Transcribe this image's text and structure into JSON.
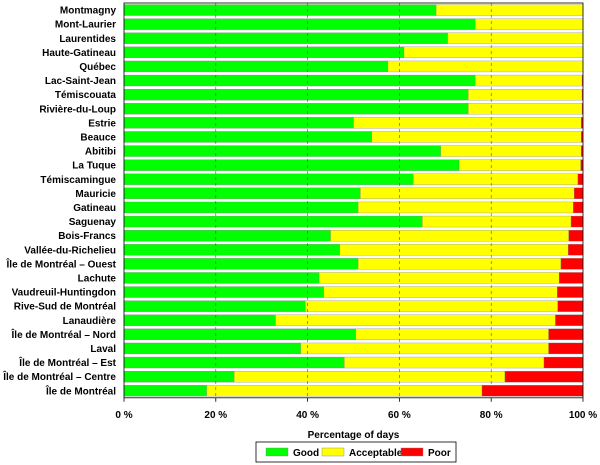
{
  "chart_data": {
    "type": "bar",
    "orientation": "horizontal",
    "stacked": true,
    "categories": [
      "Montmagny",
      "Mont-Laurier",
      "Laurentides",
      "Haute-Gatineau",
      "Québec",
      "Lac-Saint-Jean",
      "Témiscouata",
      "Rivière-du-Loup",
      "Estrie",
      "Beauce",
      "Abitibi",
      "La Tuque",
      "Témiscamingue",
      "Mauricie",
      "Gatineau",
      "Saguenay",
      "Bois-Francs",
      "Vallée-du-Richelieu",
      "Île de Montréal – Ouest",
      "Lachute",
      "Vaudreuil-Huntingdon",
      "Rive-Sud de Montréal",
      "Lanaudière",
      "Île de Montréal – Nord",
      "Laval",
      "Île de Montréal – Est",
      "Île de Montréal – Centre",
      "Île de Montréal"
    ],
    "series": [
      {
        "name": "Good",
        "color": "#00ff00",
        "values": [
          68,
          76.5,
          70.5,
          61,
          57.5,
          76.5,
          75,
          75,
          50,
          54,
          69,
          73,
          63,
          51.5,
          51,
          65,
          45,
          47,
          51,
          42.5,
          43.5,
          39.5,
          33,
          50.5,
          38.5,
          48,
          24,
          18
        ]
      },
      {
        "name": "Acceptable",
        "color": "#ffff00",
        "values": [
          32,
          23.5,
          29.5,
          39,
          42.5,
          23.3,
          24.8,
          24.8,
          49.6,
          45.6,
          30.6,
          26.5,
          35.9,
          46.6,
          46.9,
          32.4,
          51.9,
          49.8,
          44.2,
          52.3,
          50.9,
          55,
          61,
          42,
          54,
          43.5,
          59,
          60
        ]
      },
      {
        "name": "Poor",
        "color": "#ff0000",
        "values": [
          0,
          0,
          0,
          0,
          0,
          0.2,
          0.2,
          0.2,
          0.4,
          0.4,
          0.4,
          0.5,
          1.1,
          1.9,
          2.1,
          2.6,
          3.1,
          3.2,
          4.8,
          5.2,
          5.6,
          5.5,
          6,
          7.5,
          7.5,
          8.5,
          17,
          22
        ]
      }
    ],
    "xlabel": "Percentage of days",
    "ylabel": "",
    "xlim": [
      0,
      100
    ],
    "xticks": [
      0,
      20,
      40,
      60,
      80,
      100
    ],
    "xtick_labels": [
      "0 %",
      "20 %",
      "40 %",
      "60 %",
      "80 %",
      "100 %"
    ],
    "grid": "vertical dashed",
    "legend_position": "bottom"
  }
}
